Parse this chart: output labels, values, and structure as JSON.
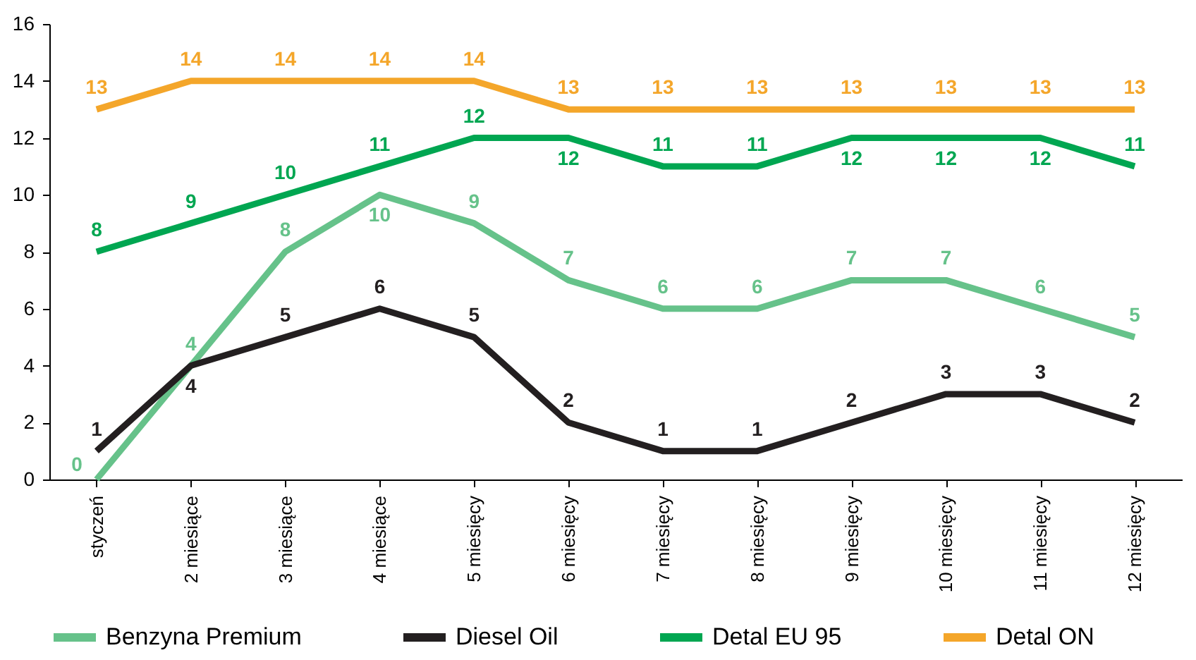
{
  "chart_data": {
    "type": "line",
    "categories": [
      "styczeń",
      "2 miesiące",
      "3 miesiące",
      "4 miesiące",
      "5 miesięcy",
      "6 miesięcy",
      "7 miesięcy",
      "8 miesięcy",
      "9 miesięcy",
      "10 miesięcy",
      "11 miesięcy",
      "12 miesięcy"
    ],
    "series": [
      {
        "name": "Benzyna Premium",
        "color": "#66c28a",
        "values": [
          0,
          4,
          8,
          10,
          9,
          7,
          6,
          6,
          7,
          7,
          6,
          5
        ]
      },
      {
        "name": "Diesel Oil",
        "color": "#231f20",
        "values": [
          1,
          4,
          5,
          6,
          5,
          2,
          1,
          1,
          2,
          3,
          3,
          2
        ]
      },
      {
        "name": "Detal EU 95",
        "color": "#00a651",
        "values": [
          8,
          9,
          10,
          11,
          12,
          12,
          11,
          11,
          12,
          12,
          12,
          11
        ]
      },
      {
        "name": "Detal ON",
        "color": "#f4a62a",
        "values": [
          13,
          14,
          14,
          14,
          14,
          13,
          13,
          13,
          13,
          13,
          13,
          13
        ]
      }
    ],
    "ylim": [
      0,
      16
    ],
    "yticks": [
      0,
      2,
      4,
      6,
      8,
      10,
      12,
      14,
      16
    ],
    "grid": false,
    "legend": "bottom",
    "marker": "none",
    "line_style": "solid",
    "data_labels": true
  }
}
